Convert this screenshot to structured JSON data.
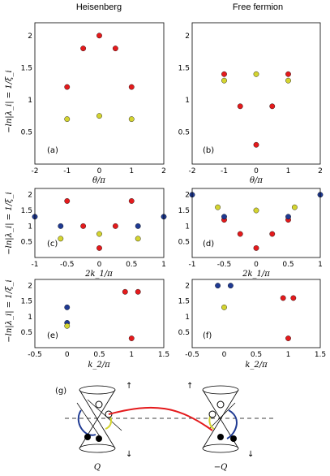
{
  "column_titles": [
    "Heisenberg",
    "Free fermion"
  ],
  "panel_labels": [
    "(a)",
    "(b)",
    "(c)",
    "(d)",
    "(e)",
    "(f)",
    "(g)"
  ],
  "ylabel": "−ln|λ_i| = 1/ξ_i",
  "xlabels": {
    "theta": "θ/π",
    "k1": "2k_1/π",
    "k2": "k_2/π"
  },
  "diagram_labels": {
    "left": "Q",
    "right": "−Q"
  },
  "colors": {
    "red": "#e41a1c",
    "blue": "#1f3a93",
    "yellow": "#d4d430"
  },
  "chart_data": [
    {
      "id": "a",
      "type": "scatter",
      "xlim": [
        -2,
        2
      ],
      "ylim": [
        0,
        2.2
      ],
      "xticks": [
        -2,
        -1,
        0,
        1,
        2
      ],
      "yticks": [
        0.5,
        1.0,
        1.5,
        2.0
      ],
      "series": [
        {
          "color": "red",
          "x": [
            -1,
            -0.5,
            0,
            0.5,
            1
          ],
          "y": [
            1.2,
            1.8,
            2.0,
            1.8,
            1.2
          ]
        },
        {
          "color": "yellow",
          "x": [
            -1,
            0,
            1
          ],
          "y": [
            0.7,
            0.75,
            0.7
          ]
        }
      ]
    },
    {
      "id": "b",
      "type": "scatter",
      "xlim": [
        -2,
        2
      ],
      "ylim": [
        0,
        2.2
      ],
      "xticks": [
        -2,
        -1,
        0,
        1,
        2
      ],
      "yticks": [
        0.5,
        1.0,
        1.5,
        2.0
      ],
      "series": [
        {
          "color": "red",
          "x": [
            -1,
            -0.5,
            0,
            0.5,
            1
          ],
          "y": [
            1.4,
            0.9,
            0.3,
            0.9,
            1.4
          ]
        },
        {
          "color": "yellow",
          "x": [
            -1,
            0,
            1
          ],
          "y": [
            1.3,
            1.4,
            1.3
          ]
        }
      ]
    },
    {
      "id": "c",
      "type": "scatter",
      "xlim": [
        -1,
        1
      ],
      "ylim": [
        0,
        2.2
      ],
      "xticks": [
        -1.0,
        -0.5,
        0.0,
        0.5,
        1.0
      ],
      "yticks": [
        0.5,
        1.0,
        1.5,
        2.0
      ],
      "series": [
        {
          "color": "red",
          "x": [
            -0.5,
            -0.25,
            0,
            0.25,
            0.5
          ],
          "y": [
            1.8,
            1.0,
            0.3,
            1.0,
            1.8
          ]
        },
        {
          "color": "blue",
          "x": [
            -1,
            -0.6,
            0.6,
            1
          ],
          "y": [
            1.3,
            1.0,
            1.0,
            1.3
          ]
        },
        {
          "color": "yellow",
          "x": [
            -0.6,
            0,
            0.6
          ],
          "y": [
            0.6,
            0.75,
            0.6
          ]
        }
      ]
    },
    {
      "id": "d",
      "type": "scatter",
      "xlim": [
        -1,
        1
      ],
      "ylim": [
        0,
        2.2
      ],
      "xticks": [
        -1.0,
        -0.5,
        0.0,
        0.5,
        1.0
      ],
      "yticks": [
        0.5,
        1.0,
        1.5,
        2.0
      ],
      "series": [
        {
          "color": "red",
          "x": [
            -0.5,
            -0.25,
            0,
            0.25,
            0.5
          ],
          "y": [
            1.2,
            0.75,
            0.3,
            0.75,
            1.2
          ]
        },
        {
          "color": "blue",
          "x": [
            -1,
            -0.5,
            0.5,
            1
          ],
          "y": [
            2.0,
            1.3,
            1.3,
            2.0
          ]
        },
        {
          "color": "yellow",
          "x": [
            -0.6,
            0,
            0.6
          ],
          "y": [
            1.6,
            1.5,
            1.6
          ]
        }
      ]
    },
    {
      "id": "e",
      "type": "scatter",
      "xlim": [
        -0.5,
        1.5
      ],
      "ylim": [
        0,
        2.2
      ],
      "xticks": [
        -0.5,
        0.0,
        0.5,
        1.0,
        1.5
      ],
      "yticks": [
        0.5,
        1.0,
        1.5,
        2.0
      ],
      "series": [
        {
          "color": "red",
          "x": [
            0.9,
            1.0,
            1.1
          ],
          "y": [
            1.8,
            0.3,
            1.8
          ]
        },
        {
          "color": "blue",
          "x": [
            0,
            0
          ],
          "y": [
            0.8,
            1.3
          ]
        },
        {
          "color": "yellow",
          "x": [
            0
          ],
          "y": [
            0.7
          ]
        }
      ]
    },
    {
      "id": "f",
      "type": "scatter",
      "xlim": [
        -0.5,
        1.5
      ],
      "ylim": [
        0,
        2.2
      ],
      "xticks": [
        -0.5,
        0.0,
        0.5,
        1.0,
        1.5
      ],
      "yticks": [
        0.5,
        1.0,
        1.5,
        2.0
      ],
      "series": [
        {
          "color": "red",
          "x": [
            0.92,
            1.0,
            1.08
          ],
          "y": [
            1.6,
            0.3,
            1.6
          ]
        },
        {
          "color": "blue",
          "x": [
            -0.1,
            0.1
          ],
          "y": [
            2.0,
            2.0
          ]
        },
        {
          "color": "yellow",
          "x": [
            0
          ],
          "y": [
            1.3
          ]
        }
      ]
    }
  ]
}
